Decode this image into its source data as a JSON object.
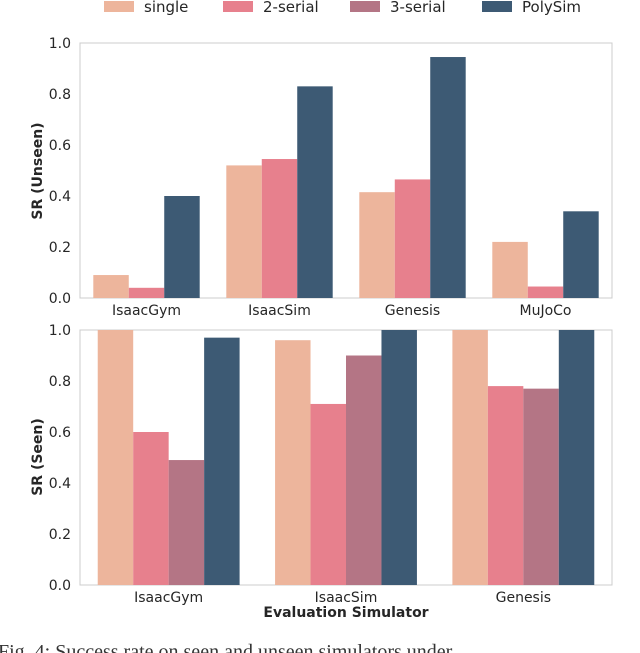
{
  "chart_data": [
    {
      "type": "bar",
      "categories": [
        "IsaacGym",
        "IsaacSim",
        "Genesis",
        "MuJoCo"
      ],
      "series": [
        {
          "name": "single",
          "values": [
            0.09,
            0.52,
            0.415,
            0.22
          ]
        },
        {
          "name": "2-serial",
          "values": [
            0.04,
            0.545,
            0.465,
            0.045
          ]
        },
        {
          "name": "PolySim",
          "values": [
            0.4,
            0.83,
            0.945,
            0.34
          ]
        }
      ],
      "title": "",
      "xlabel": "",
      "ylabel": "SR (Unseen)",
      "ylim": [
        0,
        1.0
      ],
      "yticks": [
        "0.0",
        "0.2",
        "0.4",
        "0.6",
        "0.8",
        "1.0"
      ]
    },
    {
      "type": "bar",
      "categories": [
        "IsaacGym",
        "IsaacSim",
        "Genesis"
      ],
      "series": [
        {
          "name": "single",
          "values": [
            1.0,
            0.96,
            1.0
          ]
        },
        {
          "name": "2-serial",
          "values": [
            0.6,
            0.71,
            0.78
          ]
        },
        {
          "name": "3-serial",
          "values": [
            0.49,
            0.9,
            0.77
          ]
        },
        {
          "name": "PolySim",
          "values": [
            0.97,
            1.0,
            1.0
          ]
        }
      ],
      "title": "",
      "xlabel": "Evaluation Simulator",
      "ylabel": "SR (Seen)",
      "ylim": [
        0,
        1.0
      ],
      "yticks": [
        "0.0",
        "0.2",
        "0.4",
        "0.6",
        "0.8",
        "1.0"
      ]
    }
  ],
  "legend": {
    "items": [
      "single",
      "2-serial",
      "3-serial",
      "PolySim"
    ],
    "placement": "top"
  },
  "colors": {
    "single": "#EDB59C",
    "2-serial": "#E7808D",
    "3-serial": "#B47585",
    "PolySim": "#3D5A74"
  },
  "caption": "Fig. 4: Success rate on seen and unseen simulators under"
}
